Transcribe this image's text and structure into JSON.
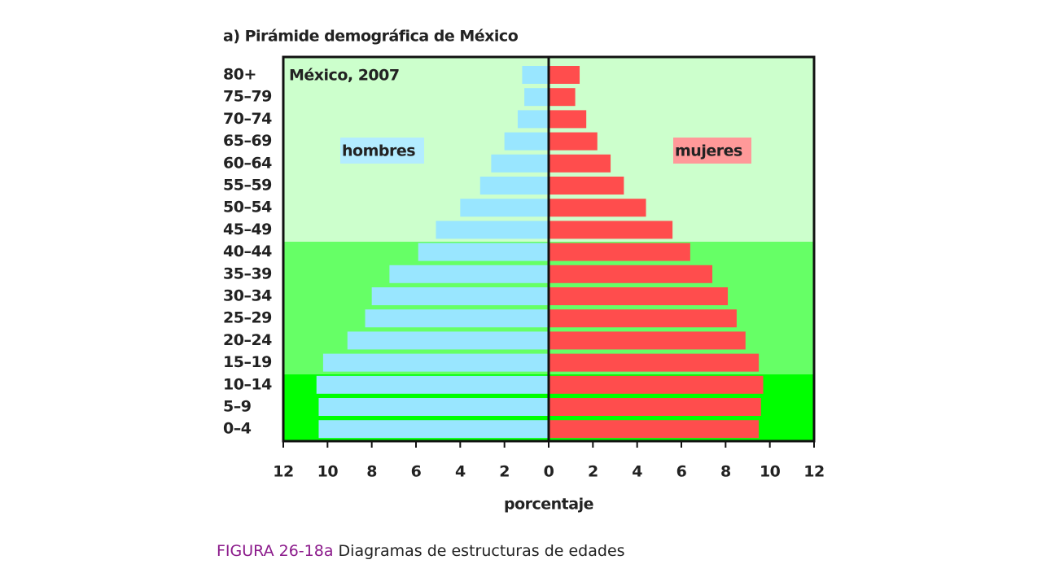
{
  "chart_data": {
    "type": "pyramid",
    "title": "a) Pirámide demográfica de México",
    "annotation": "México, 2007",
    "x_label": "porcentaje",
    "categories": [
      "80+",
      "75–79",
      "70–74",
      "65–69",
      "60–64",
      "55–59",
      "50–54",
      "45–49",
      "40–44",
      "35–39",
      "30–34",
      "25–29",
      "20–24",
      "15–19",
      "10–14",
      "5–9",
      "0–4"
    ],
    "series": [
      {
        "name": "hombres",
        "color": "#99e6ff",
        "side": "left",
        "label_color": "#b3ecff",
        "values": [
          1.2,
          1.1,
          1.4,
          2.0,
          2.6,
          3.1,
          4.0,
          5.1,
          5.9,
          7.2,
          8.0,
          8.3,
          9.1,
          10.2,
          10.5,
          10.4,
          10.4
        ]
      },
      {
        "name": "mujeres",
        "color": "#ff4d4d",
        "side": "right",
        "label_color": "#ff9999",
        "values": [
          1.4,
          1.2,
          1.7,
          2.2,
          2.8,
          3.4,
          4.4,
          5.6,
          6.4,
          7.4,
          8.1,
          8.5,
          8.9,
          9.5,
          9.7,
          9.6,
          9.5
        ]
      }
    ],
    "xlim": [
      0,
      12
    ],
    "xticks": [
      0,
      2,
      4,
      6,
      8,
      10,
      12
    ]
  },
  "caption": {
    "figure": "FIGURA 26-18a",
    "text": "Diagramas de estructuras de edades"
  }
}
